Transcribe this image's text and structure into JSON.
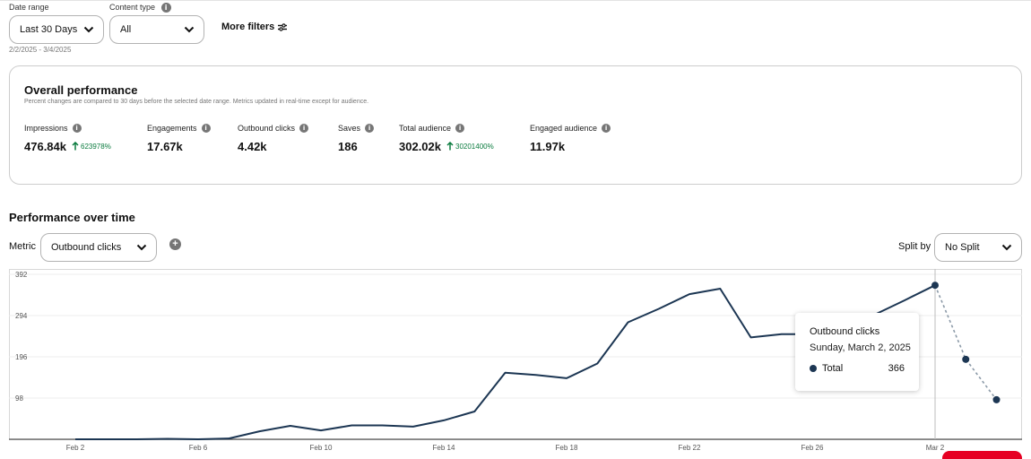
{
  "filters": {
    "date_range_label": "Date range",
    "date_range_value": "Last 30 Days",
    "date_range_hint": "2/2/2025 - 3/4/2025",
    "content_type_label": "Content type",
    "content_type_value": "All",
    "more_filters_label": "More filters"
  },
  "overall": {
    "title": "Overall performance",
    "subtitle": "Percent changes are compared to 30 days before the selected date range. Metrics updated in real-time except for audience.",
    "metrics": [
      {
        "label": "Impressions",
        "value": "476.84k",
        "change": "623978%"
      },
      {
        "label": "Engagements",
        "value": "17.67k",
        "change": ""
      },
      {
        "label": "Outbound clicks",
        "value": "4.42k",
        "change": ""
      },
      {
        "label": "Saves",
        "value": "186",
        "change": ""
      },
      {
        "label": "Total audience",
        "value": "302.02k",
        "change": "30201400%"
      },
      {
        "label": "Engaged audience",
        "value": "11.97k",
        "change": ""
      }
    ]
  },
  "over_time": {
    "title": "Performance over time",
    "metric_label": "Metric",
    "metric_value": "Outbound clicks",
    "split_label": "Split by",
    "split_value": "No Split"
  },
  "tooltip": {
    "title": "Outbound clicks",
    "date": "Sunday, March 2, 2025",
    "series": "Total",
    "value": "366"
  },
  "chart_data": {
    "type": "line",
    "x_tick_labels": [
      "Feb 2",
      "Feb 6",
      "Feb 10",
      "Feb 14",
      "Feb 18",
      "Feb 22",
      "Feb 26",
      "Mar 2"
    ],
    "y_tick_labels": [
      "392",
      "294",
      "196",
      "98"
    ],
    "ylim": [
      0,
      392
    ],
    "grid": true,
    "series": [
      {
        "color": "#1c3653",
        "x": [
          "2025-02-02",
          "2025-02-03",
          "2025-02-04",
          "2025-02-05",
          "2025-02-06",
          "2025-02-07",
          "2025-02-08",
          "2025-02-09",
          "2025-02-10",
          "2025-02-11",
          "2025-02-12",
          "2025-02-13",
          "2025-02-14",
          "2025-02-15",
          "2025-02-16",
          "2025-02-17",
          "2025-02-18",
          "2025-02-19",
          "2025-02-20",
          "2025-02-21",
          "2025-02-22",
          "2025-02-23",
          "2025-02-24",
          "2025-02-25",
          "2025-02-26",
          "2025-02-27",
          "2025-02-28",
          "2025-03-01",
          "2025-03-02"
        ],
        "values": [
          0,
          0,
          0,
          1,
          0,
          2,
          19,
          32,
          21,
          33,
          33,
          30,
          45,
          66,
          158,
          153,
          145,
          180,
          278,
          310,
          345,
          358,
          242,
          250,
          250,
          280,
          295,
          330,
          366
        ]
      },
      {
        "color": "#8c9aa8",
        "dashed": true,
        "x": [
          "2025-03-02",
          "2025-03-03",
          "2025-03-04"
        ],
        "values": [
          366,
          190,
          94
        ]
      }
    ],
    "highlight": {
      "x": "2025-03-02",
      "value": 366
    }
  }
}
